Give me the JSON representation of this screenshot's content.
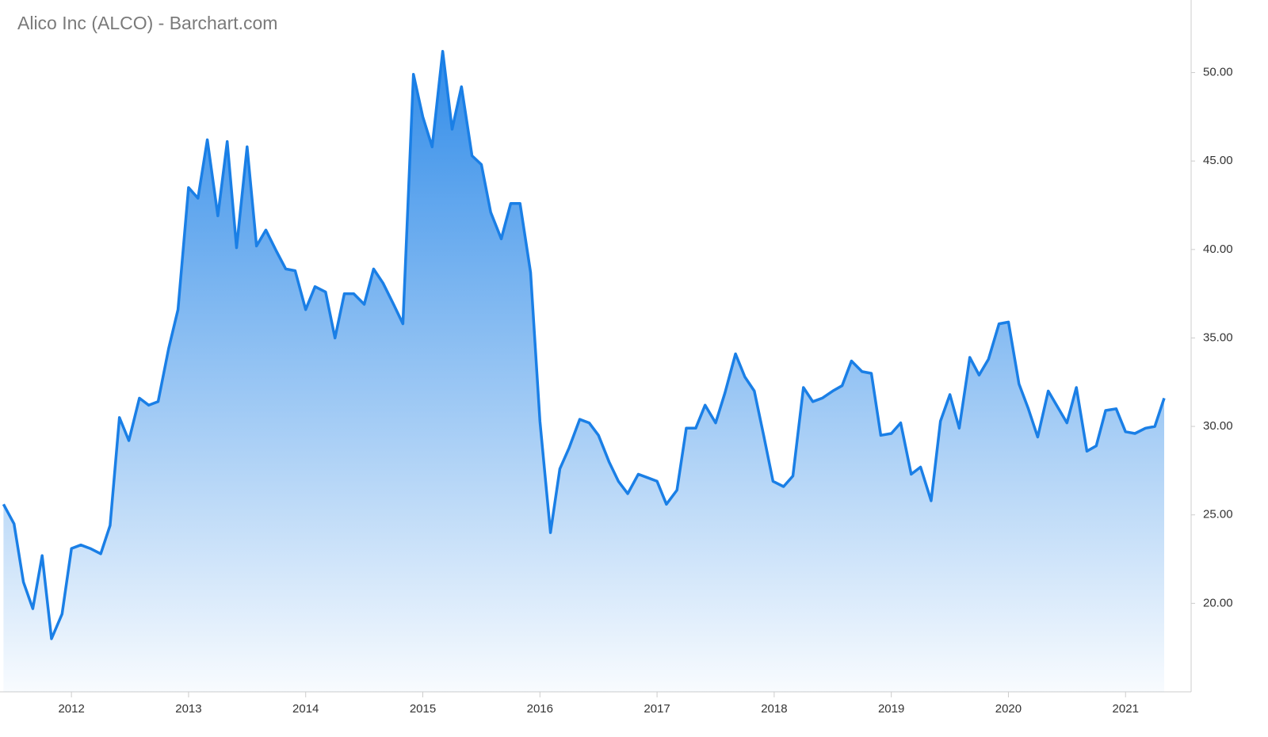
{
  "chart_data": {
    "type": "area",
    "title": "Alico Inc (ALCO) - Barchart.com",
    "color": "#1a7fe6",
    "x": [
      2011.42,
      2011.51,
      2011.59,
      2011.67,
      2011.75,
      2011.83,
      2011.92,
      2012.0,
      2012.08,
      2012.16,
      2012.25,
      2012.33,
      2012.41,
      2012.49,
      2012.58,
      2012.66,
      2012.74,
      2012.83,
      2012.91,
      2013.0,
      2013.08,
      2013.16,
      2013.25,
      2013.33,
      2013.41,
      2013.5,
      2013.58,
      2013.66,
      2013.75,
      2013.83,
      2013.91,
      2014.0,
      2014.08,
      2014.17,
      2014.25,
      2014.33,
      2014.41,
      2014.5,
      2014.58,
      2014.66,
      2014.75,
      2014.83,
      2014.92,
      2015.0,
      2015.08,
      2015.17,
      2015.25,
      2015.33,
      2015.42,
      2015.5,
      2015.58,
      2015.67,
      2015.75,
      2015.83,
      2015.92,
      2016.0,
      2016.09,
      2016.17,
      2016.25,
      2016.34,
      2016.42,
      2016.5,
      2016.59,
      2016.67,
      2016.75,
      2016.84,
      2016.92,
      2017.0,
      2017.08,
      2017.17,
      2017.25,
      2017.33,
      2017.41,
      2017.5,
      2017.58,
      2017.67,
      2017.75,
      2017.83,
      2017.91,
      2017.99,
      2018.08,
      2018.16,
      2018.25,
      2018.33,
      2018.41,
      2018.5,
      2018.58,
      2018.66,
      2018.75,
      2018.83,
      2018.91,
      2019.0,
      2019.08,
      2019.17,
      2019.25,
      2019.34,
      2019.42,
      2019.5,
      2019.58,
      2019.67,
      2019.75,
      2019.83,
      2019.92,
      2020.0,
      2020.09,
      2020.17,
      2020.25,
      2020.34,
      2020.42,
      2020.5,
      2020.58,
      2020.67,
      2020.75,
      2020.83,
      2020.92,
      2021.0,
      2021.08,
      2021.17,
      2021.25,
      2021.33
    ],
    "values": [
      25.6,
      24.5,
      21.2,
      19.7,
      22.7,
      18.0,
      19.4,
      23.1,
      23.3,
      23.1,
      22.8,
      24.4,
      30.5,
      29.2,
      31.6,
      31.2,
      31.4,
      34.4,
      36.6,
      43.5,
      42.9,
      46.2,
      41.9,
      46.1,
      40.1,
      45.8,
      40.2,
      41.1,
      39.9,
      38.9,
      38.8,
      36.6,
      37.9,
      37.6,
      35.0,
      37.5,
      37.5,
      36.9,
      38.9,
      38.1,
      36.9,
      35.8,
      49.9,
      47.5,
      45.8,
      51.2,
      46.8,
      49.2,
      45.3,
      44.8,
      42.1,
      40.6,
      42.6,
      42.6,
      38.7,
      30.3,
      24.0,
      27.6,
      28.8,
      30.4,
      30.2,
      29.5,
      28.0,
      26.9,
      26.2,
      27.3,
      27.1,
      26.9,
      25.6,
      26.4,
      29.9,
      29.9,
      31.2,
      30.2,
      31.9,
      34.1,
      32.8,
      32.0,
      29.5,
      26.9,
      26.6,
      27.2,
      32.2,
      31.4,
      31.6,
      32.0,
      32.3,
      33.7,
      33.1,
      33.0,
      29.5,
      29.6,
      30.2,
      27.3,
      27.7,
      25.8,
      30.3,
      31.8,
      29.9,
      33.9,
      32.9,
      33.8,
      35.8,
      35.9,
      32.4,
      31.0,
      29.4,
      32.0,
      31.1,
      30.2,
      32.2,
      28.6,
      28.9,
      30.9,
      31.0,
      29.7,
      29.6,
      29.9,
      30.0,
      31.6
    ],
    "xlim": [
      2011.39,
      2021.56
    ],
    "xticks": [
      2012,
      2013,
      2014,
      2015,
      2016,
      2017,
      2018,
      2019,
      2020,
      2021
    ],
    "ylim": [
      15.0,
      54.1
    ],
    "yticks": [
      {
        "value": 20,
        "label": "20.00"
      },
      {
        "value": 25,
        "label": "25.00"
      },
      {
        "value": 30,
        "label": "30.00"
      },
      {
        "value": 35,
        "label": "35.00"
      },
      {
        "value": 40,
        "label": "40.00"
      },
      {
        "value": 45,
        "label": "45.00"
      },
      {
        "value": 50,
        "label": "50.00"
      }
    ]
  }
}
